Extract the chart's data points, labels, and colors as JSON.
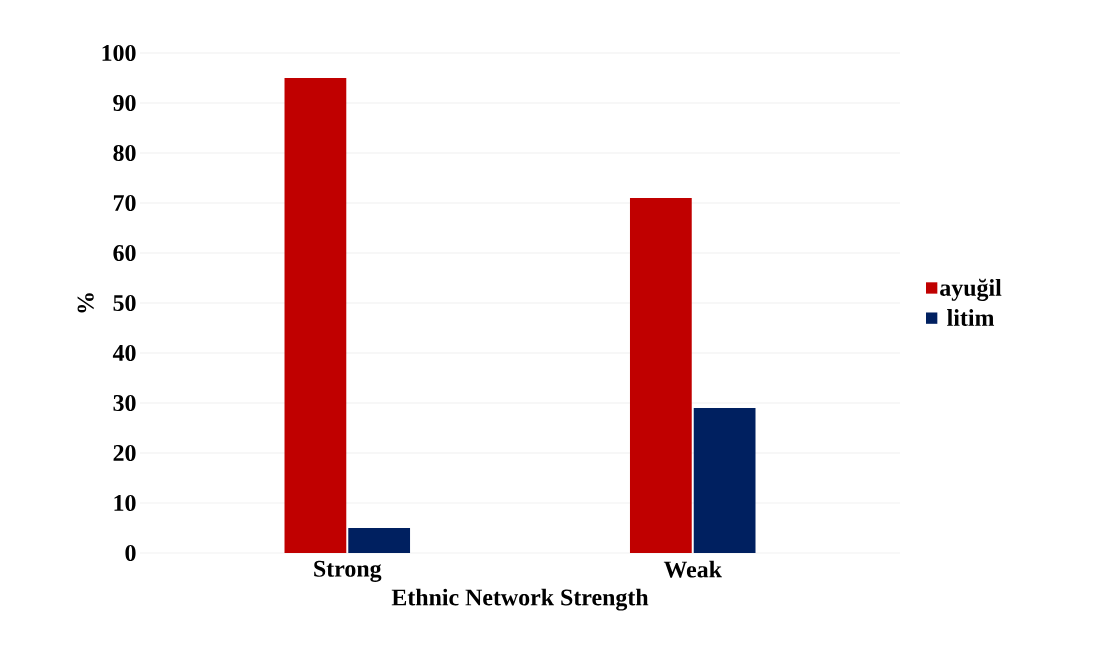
{
  "chart_data": {
    "type": "bar",
    "xlabel": "Ethnic Network Strength",
    "ylabel": "%",
    "categories": [
      "Strong",
      "Weak"
    ],
    "series": [
      {
        "name": "ayuğil",
        "color": "#c00000",
        "values": [
          95,
          71
        ]
      },
      {
        "name": "litim",
        "color": "#002060",
        "values": [
          5,
          29
        ]
      }
    ],
    "ylim": [
      0,
      100
    ],
    "yticks": [
      0,
      10,
      20,
      30,
      40,
      50,
      60,
      70,
      80,
      90,
      100
    ],
    "grid": "y",
    "legend": "right"
  }
}
